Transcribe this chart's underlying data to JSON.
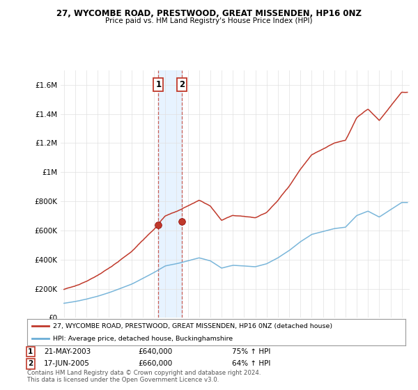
{
  "title": "27, WYCOMBE ROAD, PRESTWOOD, GREAT MISSENDEN, HP16 0NZ",
  "subtitle": "Price paid vs. HM Land Registry's House Price Index (HPI)",
  "legend_line1": "27, WYCOMBE ROAD, PRESTWOOD, GREAT MISSENDEN, HP16 0NZ (detached house)",
  "legend_line2": "HPI: Average price, detached house, Buckinghamshire",
  "footer": "Contains HM Land Registry data © Crown copyright and database right 2024.\nThis data is licensed under the Open Government Licence v3.0.",
  "sale1_date": "21-MAY-2003",
  "sale1_price": 640000,
  "sale1_label": "75% ↑ HPI",
  "sale2_date": "17-JUN-2005",
  "sale2_price": 660000,
  "sale2_label": "64% ↑ HPI",
  "sale1_x": 2003.38,
  "sale2_x": 2005.46,
  "hpi_color": "#6baed6",
  "price_color": "#c0392b",
  "shade_color": "#ddeeff",
  "ylim_max": 1700000,
  "yticks": [
    0,
    200000,
    400000,
    600000,
    800000,
    1000000,
    1200000,
    1400000,
    1600000
  ],
  "ytick_labels": [
    "£0",
    "£200K",
    "£400K",
    "£600K",
    "£800K",
    "£1M",
    "£1.2M",
    "£1.4M",
    "£1.6M"
  ]
}
